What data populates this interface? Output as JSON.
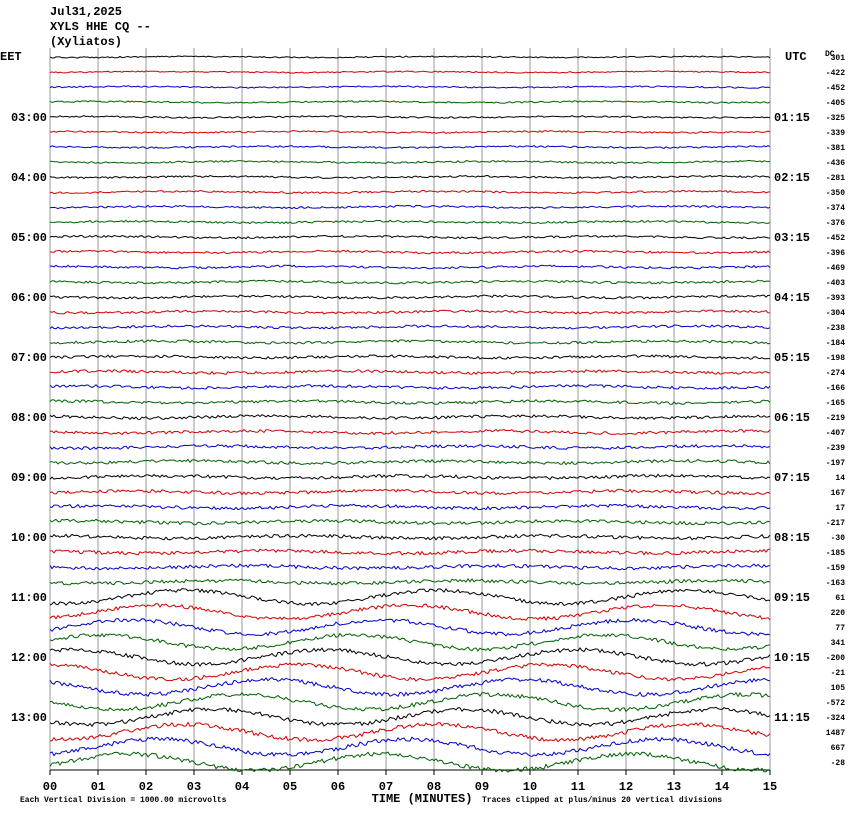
{
  "header": {
    "date": "Jul31,2025",
    "station": "XYLS HHE CQ --",
    "location": "(Xyliatos)"
  },
  "left_zone": "EET",
  "right_zone": "UTC",
  "dc_label": "DC",
  "hour_labels": [
    {
      "left": "03:00",
      "right": "01:15"
    },
    {
      "left": "04:00",
      "right": "02:15"
    },
    {
      "left": "05:00",
      "right": "03:15"
    },
    {
      "left": "06:00",
      "right": "04:15"
    },
    {
      "left": "07:00",
      "right": "05:15"
    },
    {
      "left": "08:00",
      "right": "06:15"
    },
    {
      "left": "09:00",
      "right": "07:15"
    },
    {
      "left": "10:00",
      "right": "08:15"
    },
    {
      "left": "11:00",
      "right": "09:15"
    },
    {
      "left": "12:00",
      "right": "10:15"
    },
    {
      "left": "13:00",
      "right": "11:15"
    }
  ],
  "dc_offsets": [
    301,
    -422,
    -452,
    -405,
    -325,
    -339,
    -381,
    -436,
    -281,
    -350,
    -374,
    -376,
    -452,
    -396,
    -469,
    -403,
    -393,
    -304,
    -238,
    -184,
    -198,
    -274,
    -166,
    -165,
    -219,
    -407,
    -239,
    -197,
    14,
    167,
    17,
    -217,
    -30,
    -185,
    -159,
    -163,
    61,
    220,
    77,
    341,
    -200,
    -21,
    105,
    -572,
    -324,
    1487,
    667,
    -28
  ],
  "trace_colors": [
    "#000000",
    "#d00000",
    "#0000c8",
    "#006000"
  ],
  "xlabel": "TIME (MINUTES)",
  "xlim": [
    0,
    15
  ],
  "xticks": [
    {
      "value": 0,
      "label": "00"
    },
    {
      "value": 1,
      "label": "01"
    },
    {
      "value": 2,
      "label": "02"
    },
    {
      "value": 3,
      "label": "03"
    },
    {
      "value": 4,
      "label": "04"
    },
    {
      "value": 5,
      "label": "05"
    },
    {
      "value": 6,
      "label": "06"
    },
    {
      "value": 7,
      "label": "07"
    },
    {
      "value": 8,
      "label": "08"
    },
    {
      "value": 9,
      "label": "09"
    },
    {
      "value": 10,
      "label": "10"
    },
    {
      "value": 11,
      "label": "11"
    },
    {
      "value": 12,
      "label": "12"
    },
    {
      "value": 13,
      "label": "13"
    },
    {
      "value": 14,
      "label": "14"
    },
    {
      "value": 15,
      "label": "15"
    }
  ],
  "scale_note": "Each Vertical Division = 1000.00 microvolts",
  "clip_note": "Traces clipped at plus/minus 20 vertical divisions"
}
